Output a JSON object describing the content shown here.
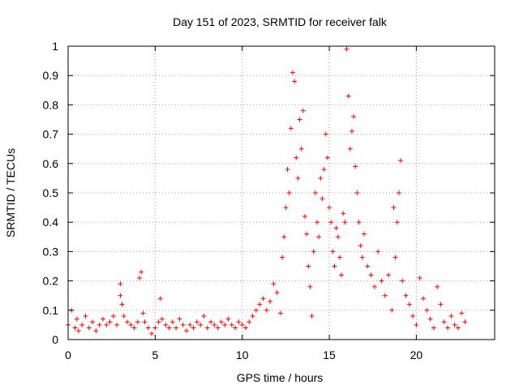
{
  "chart_data": {
    "type": "scatter",
    "title": "Day 151 of 2023, SRMTID for receiver falk",
    "xlabel": "GPS time / hours",
    "ylabel": "SRMTID / TECUs",
    "xlim": [
      0,
      24.5
    ],
    "ylim": [
      0,
      1
    ],
    "x_ticks": [
      0,
      5,
      10,
      15,
      20
    ],
    "x_tick_labels": [
      "0",
      "5",
      "10",
      "15",
      "20"
    ],
    "y_ticks": [
      0,
      0.1,
      0.2,
      0.3,
      0.4,
      0.5,
      0.6,
      0.7,
      0.8,
      0.9,
      1
    ],
    "y_tick_labels": [
      "0",
      "0.1",
      "0.2",
      "0.3",
      "0.4",
      "0.5",
      "0.6",
      "0.7",
      "0.8",
      "0.9",
      "1"
    ],
    "grid": true,
    "marker": "+",
    "color": "#ff0000",
    "series": [
      {
        "name": "SRMTID",
        "x": [
          0.0,
          0.2,
          0.4,
          0.5,
          0.6,
          0.8,
          1.0,
          1.2,
          1.4,
          1.6,
          1.8,
          2.0,
          2.2,
          2.4,
          2.6,
          2.8,
          3.0,
          3.0,
          3.1,
          3.2,
          3.4,
          3.6,
          3.8,
          4.0,
          4.1,
          4.2,
          4.3,
          4.4,
          4.6,
          4.8,
          5.0,
          5.2,
          5.3,
          5.4,
          5.6,
          5.8,
          6.0,
          6.2,
          6.4,
          6.6,
          6.8,
          7.0,
          7.2,
          7.4,
          7.6,
          7.8,
          8.0,
          8.2,
          8.4,
          8.6,
          8.8,
          9.0,
          9.2,
          9.4,
          9.6,
          9.8,
          10.0,
          10.2,
          10.4,
          10.6,
          10.8,
          11.0,
          11.2,
          11.4,
          11.6,
          11.8,
          12.0,
          12.2,
          12.3,
          12.4,
          12.5,
          12.6,
          12.7,
          12.8,
          12.9,
          13.0,
          13.1,
          13.2,
          13.3,
          13.4,
          13.5,
          13.6,
          13.7,
          13.8,
          13.9,
          14.0,
          14.1,
          14.2,
          14.3,
          14.4,
          14.5,
          14.6,
          14.7,
          14.8,
          14.9,
          15.0,
          15.1,
          15.2,
          15.3,
          15.4,
          15.5,
          15.6,
          15.7,
          15.8,
          15.9,
          16.0,
          16.1,
          16.2,
          16.3,
          16.4,
          16.5,
          16.6,
          16.7,
          16.8,
          16.9,
          17.0,
          17.2,
          17.4,
          17.6,
          17.8,
          18.0,
          18.2,
          18.4,
          18.6,
          18.7,
          18.8,
          18.9,
          19.0,
          19.1,
          19.2,
          19.4,
          19.6,
          19.8,
          20.0,
          20.2,
          20.4,
          20.6,
          20.8,
          21.0,
          21.2,
          21.4,
          21.6,
          21.8,
          22.0,
          22.2,
          22.4,
          22.6,
          22.8
        ],
        "y": [
          0.05,
          0.1,
          0.04,
          0.07,
          0.03,
          0.05,
          0.08,
          0.04,
          0.06,
          0.03,
          0.05,
          0.07,
          0.05,
          0.06,
          0.08,
          0.05,
          0.15,
          0.19,
          0.12,
          0.08,
          0.06,
          0.05,
          0.04,
          0.06,
          0.21,
          0.23,
          0.09,
          0.06,
          0.04,
          0.02,
          0.04,
          0.06,
          0.14,
          0.07,
          0.05,
          0.04,
          0.06,
          0.04,
          0.07,
          0.05,
          0.03,
          0.05,
          0.04,
          0.06,
          0.05,
          0.08,
          0.04,
          0.06,
          0.05,
          0.04,
          0.06,
          0.05,
          0.07,
          0.05,
          0.04,
          0.06,
          0.05,
          0.04,
          0.06,
          0.08,
          0.1,
          0.12,
          0.14,
          0.1,
          0.13,
          0.19,
          0.16,
          0.09,
          0.28,
          0.35,
          0.45,
          0.58,
          0.5,
          0.72,
          0.91,
          0.88,
          0.62,
          0.55,
          0.75,
          0.65,
          0.78,
          0.42,
          0.36,
          0.25,
          0.18,
          0.08,
          0.3,
          0.5,
          0.4,
          0.35,
          0.55,
          0.48,
          0.58,
          0.7,
          0.62,
          0.45,
          0.4,
          0.3,
          0.25,
          0.38,
          0.35,
          0.28,
          0.22,
          0.43,
          0.4,
          0.99,
          0.83,
          0.65,
          0.71,
          0.76,
          0.59,
          0.5,
          0.4,
          0.32,
          0.28,
          0.36,
          0.25,
          0.22,
          0.18,
          0.3,
          0.2,
          0.15,
          0.22,
          0.1,
          0.45,
          0.28,
          0.4,
          0.5,
          0.61,
          0.2,
          0.15,
          0.12,
          0.08,
          0.05,
          0.21,
          0.14,
          0.1,
          0.07,
          0.04,
          0.18,
          0.12,
          0.06,
          0.04,
          0.08,
          0.05,
          0.04,
          0.09,
          0.06
        ]
      }
    ]
  }
}
